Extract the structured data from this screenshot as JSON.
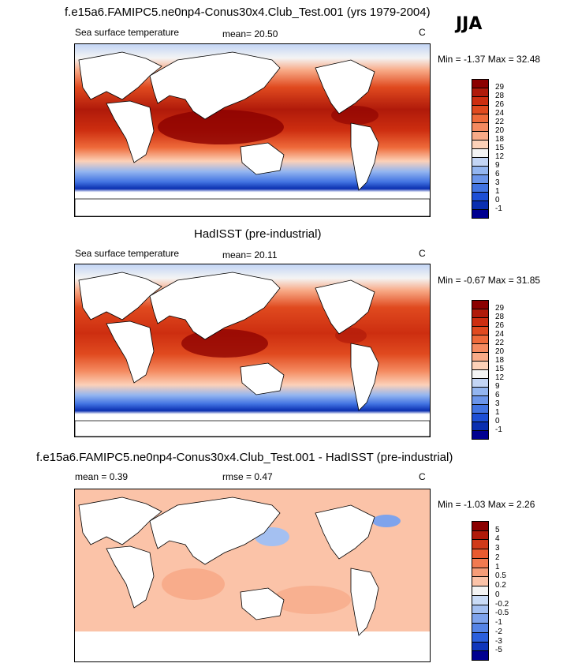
{
  "season": "JJA",
  "panels": [
    {
      "title": "f.e15a6.FAMIPC5.ne0np4-Conus30x4.Club_Test.001 (yrs 1979-2004)",
      "left_label": "Sea surface temperature",
      "center_label": "mean=  20.50",
      "units": "C",
      "minmax": "Min =  -1.37 Max =  32.48",
      "colorbar": {
        "labels": [
          "29",
          "28",
          "26",
          "24",
          "22",
          "20",
          "18",
          "15",
          "12",
          "9",
          "6",
          "3",
          "1",
          "0",
          "-1"
        ],
        "colors": [
          "#8b0000",
          "#b01a0a",
          "#cd2e10",
          "#e04a1f",
          "#ee6a3a",
          "#f48a60",
          "#f8ab88",
          "#fcd1b8",
          "#f4f4f4",
          "#c3d5f5",
          "#93b5f0",
          "#6b95ea",
          "#4274e2",
          "#1d4fd6",
          "#0a2fb0",
          "#000090"
        ]
      },
      "chart_data": {
        "type": "heatmap",
        "title": "f.e15a6.FAMIPC5.ne0np4-Conus30x4.Club_Test.001 (yrs 1979-2004)",
        "variable": "Sea surface temperature",
        "mean": 20.5,
        "min": -1.37,
        "max": 32.48,
        "units": "C"
      }
    },
    {
      "title": "HadISST (pre-industrial)",
      "left_label": "Sea surface temperature",
      "center_label": "mean=  20.11",
      "units": "C",
      "minmax": "Min =  -0.67 Max =  31.85",
      "colorbar": {
        "labels": [
          "29",
          "28",
          "26",
          "24",
          "22",
          "20",
          "18",
          "15",
          "12",
          "9",
          "6",
          "3",
          "1",
          "0",
          "-1"
        ],
        "colors": [
          "#8b0000",
          "#b01a0a",
          "#cd2e10",
          "#e04a1f",
          "#ee6a3a",
          "#f48a60",
          "#f8ab88",
          "#fcd1b8",
          "#f4f4f4",
          "#c3d5f5",
          "#93b5f0",
          "#6b95ea",
          "#4274e2",
          "#1d4fd6",
          "#0a2fb0",
          "#000090"
        ]
      },
      "chart_data": {
        "type": "heatmap",
        "title": "HadISST (pre-industrial)",
        "variable": "Sea surface temperature",
        "mean": 20.11,
        "min": -0.67,
        "max": 31.85,
        "units": "C"
      }
    },
    {
      "title": "f.e15a6.FAMIPC5.ne0np4-Conus30x4.Club_Test.001 - HadISST (pre-industrial)",
      "left_label": "mean =   0.39",
      "center_label": "rmse =   0.47",
      "units": "C",
      "minmax": "Min =  -1.03 Max =   2.26",
      "colorbar": {
        "labels": [
          "5",
          "4",
          "3",
          "2",
          "1",
          "0.5",
          "0.2",
          "0",
          "-0.2",
          "-0.5",
          "-1",
          "-2",
          "-3",
          "-5"
        ],
        "colors": [
          "#8b0000",
          "#b01a0a",
          "#d03a1a",
          "#e85a30",
          "#f27a50",
          "#f69d78",
          "#fbc3a8",
          "#f4f4f4",
          "#c9dbf6",
          "#a4c0f1",
          "#7ea3ec",
          "#5584e6",
          "#2b5fdc",
          "#0f36bb",
          "#000090"
        ]
      },
      "chart_data": {
        "type": "heatmap",
        "title": "f.e15a6.FAMIPC5.ne0np4-Conus30x4.Club_Test.001 - HadISST (pre-industrial)",
        "mean": 0.39,
        "rmse": 0.47,
        "min": -1.03,
        "max": 2.26,
        "units": "C"
      }
    }
  ]
}
